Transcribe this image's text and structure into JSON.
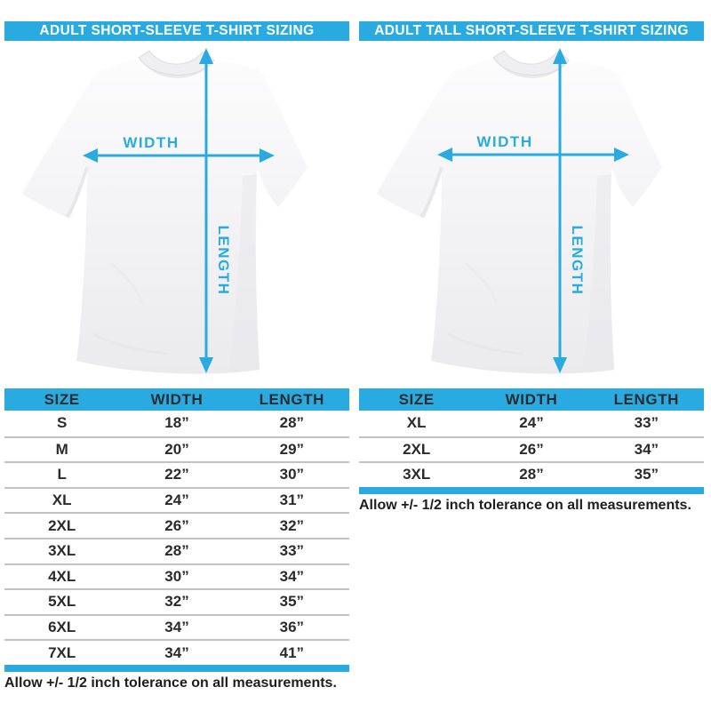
{
  "colors": {
    "accent": "#29ABE2",
    "text_dark": "#2b2b2b",
    "divider": "#c2c2c2",
    "header_text": "#ffffff"
  },
  "panels": [
    {
      "header": "ADULT SHORT-SLEEVE T-SHIRT SIZING",
      "diagram": {
        "width_label": "WIDTH",
        "length_label": "LENGTH"
      },
      "table": {
        "columns": [
          "SIZE",
          "WIDTH",
          "LENGTH"
        ],
        "rows": [
          [
            "S",
            "18”",
            "28”"
          ],
          [
            "M",
            "20”",
            "29”"
          ],
          [
            "L",
            "22”",
            "30”"
          ],
          [
            "XL",
            "24”",
            "31”"
          ],
          [
            "2XL",
            "26”",
            "32”"
          ],
          [
            "3XL",
            "28”",
            "33”"
          ],
          [
            "4XL",
            "30”",
            "34”"
          ],
          [
            "5XL",
            "32”",
            "35”"
          ],
          [
            "6XL",
            "34”",
            "36”"
          ],
          [
            "7XL",
            "34”",
            "41”"
          ]
        ]
      },
      "footnote": "Allow +/- 1/2 inch tolerance on all measurements."
    },
    {
      "header": "ADULT TALL SHORT-SLEEVE T-SHIRT SIZING",
      "diagram": {
        "width_label": "WIDTH",
        "length_label": "LENGTH"
      },
      "table": {
        "columns": [
          "SIZE",
          "WIDTH",
          "LENGTH"
        ],
        "rows": [
          [
            "XL",
            "24”",
            "33”"
          ],
          [
            "2XL",
            "26”",
            "34”"
          ],
          [
            "3XL",
            "28”",
            "35”"
          ]
        ]
      },
      "footnote": "Allow +/- 1/2 inch tolerance on all measurements."
    }
  ]
}
